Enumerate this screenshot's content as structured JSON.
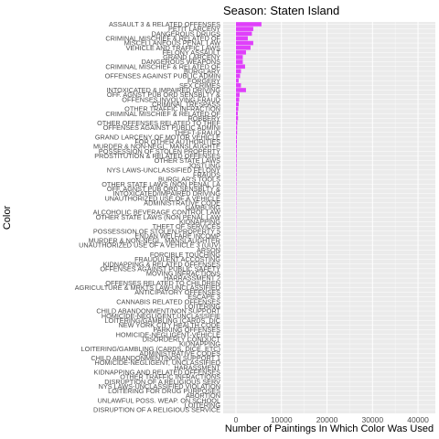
{
  "chart_data": {
    "type": "bar",
    "orientation": "horizontal",
    "title": "Season: Staten Island",
    "xlabel": "Number of Paintings In Which Color Was Used",
    "ylabel": "Color",
    "xlim": [
      0,
      43000
    ],
    "xticks": [
      0,
      10000,
      20000,
      30000,
      40000
    ],
    "bar_color": "#E040FB",
    "panel_color": "#EBEBEB",
    "grid": true,
    "categories": [
      "ASSAULT 3 & RELATED OFFENSES",
      "PETIT LARCENY",
      "DANGEROUS DRUGS",
      "CRIMINAL MISCHIEF & RELATED OF",
      "MISCELLANEOUS PENAL LAW",
      "VEHICLE AND TRAFFIC LAWS",
      "FELONY ASSAULT",
      "GRAND LARCENY",
      "DANGEROUS WEAPONS",
      "CRIMINAL MISCHIEF & RELATED OF",
      "BURGLARY",
      "OFFENSES AGAINST PUBLIC ADMIN",
      "FORGERY",
      "SEX CRIMES",
      "INTOXICATED & IMPAIRED DRIVING",
      "OFF. AGNST PUB ORD SENSBLTY &",
      "OFFENSES INVOLVING FRAUD",
      "CRIMINAL TRESPASS",
      "OTHER TRAFFIC INFRACTION",
      "CRIMINAL MISCHIEF & RELATED OF",
      "ROBBERY",
      "OTHER OFFENSES RELATED TO THEF",
      "OFFENSES AGAINST PUBLIC ADMINI",
      "THEFT-FRAUD",
      "GRAND LARCENY OF MOTOR VEHICLE",
      "FOR OTHER AUTHORITIES",
      "MURDER & NON-NEGL. MANSLAUGHTE",
      "POSSESSION OF STOLEN PROPERTY",
      "PROSTITUTION & RELATED OFFENSES",
      "OTHER STATE LAWS",
      "JOSTLING",
      "NYS LAWS-UNCLASSIFIED FELONY",
      "FRAUDS",
      "BURGLAR'S TOOLS",
      "OTHER STATE LAWS (NON PENAL LA",
      "OFF. AGNST PUB ORD SENSBLTY &",
      "INTOXICATED/IMPAIRED DRIVING",
      "UNAUTHORIZED USE OF A VEHICLE",
      "ADMINISTRATIVE CODE",
      "GAMBLING",
      "ALCOHOLIC BEVERAGE CONTROL LAW",
      "OTHER STATE LAWS (NON PENAL LAW",
      "KIDNAPPING",
      "THEFT OF SERVICES",
      "POSSESSION OF STOLEN PROPERTY 5",
      "ENDAN WELFARE INCOMP",
      "MURDER & NON-NEGL. MANSLAUGHTER",
      "UNAUTHORIZED USE OF A VEHICLE 3 (UUV)",
      "ARSON",
      "FORCIBLE TOUCHING",
      "FRAUDULENT ACCOSTING",
      "KIDNAPPING & RELATED OFFENSES",
      "OFFENSES AGAINST PUBLIC SAFETY",
      "MOVING INFRACTIONS",
      "HARRASSMENT 2",
      "OFFENSES RELATED TO CHILDREN",
      "AGRICULTURE & MRKTS LAW-UNCLASSIFIED",
      "ANTICIPATORY OFFENSES",
      "ESCAPE 3",
      "CANNABIS RELATED OFFENSES",
      "LOITERING",
      "CHILD ABANDONMENT/NON SUPPORT",
      "HOMICIDE-NEGLIGENT,UNCLASSIFIE",
      "LOITERING/GAMBLING (CARDS, DIC",
      "NEW YORK CITY HEALTH CODE",
      "PARKING OFFENSES",
      "HOMICIDE-NEGLIGENT-VEHICLE",
      "DISORDERLY CONDUCT",
      "KIDNAPPING",
      "LOITERING/GAMBLING (CARDS, DICE, ETC)",
      "ADMINISTRATIVE CODES",
      "CHILD ABANDONMENT/NON SUPPORT 1",
      "HOMICIDE-NEGLIGENT, UNCLASSIFIED",
      "HARASSMENT",
      "KIDNAPPING AND RELATED OFFENSES",
      "OTHER TRAFFIC INFRACTIONS",
      "DISRUPTION OF A RELIGIOUS SERV",
      "NYS LAWS-UNCLASSIFIED VIOLATION",
      "LOITERING FOR DRUG PURPOSES",
      "ABORTION",
      "UNLAWFUL POSS. WEAP. ON SCHOOL",
      "LOITERING",
      "DISRUPTION OF A RELIGIOUS SERVICE"
    ],
    "values": [
      5600,
      3800,
      3500,
      2600,
      3800,
      3200,
      2200,
      1500,
      1500,
      2000,
      1100,
      900,
      600,
      1100,
      2200,
      800,
      700,
      600,
      500,
      400,
      450,
      300,
      250,
      250,
      200,
      200,
      180,
      160,
      150,
      140,
      130,
      120,
      110,
      100,
      90,
      80,
      75,
      70,
      65,
      60,
      55,
      50,
      45,
      40,
      38,
      36,
      34,
      32,
      30,
      28,
      26,
      24,
      22,
      20,
      18,
      16,
      15,
      14,
      13,
      12,
      11,
      10,
      9,
      8,
      7,
      7,
      6,
      6,
      5,
      5,
      4,
      4,
      3,
      3,
      3,
      2,
      2,
      2,
      2,
      1,
      1,
      1,
      1
    ]
  }
}
